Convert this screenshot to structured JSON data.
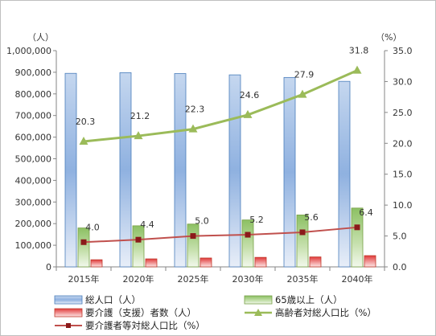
{
  "chart_data": {
    "type": "bar",
    "categories": [
      "2015年",
      "2020年",
      "2025年",
      "2030年",
      "2035年",
      "2040年"
    ],
    "left_axis": {
      "unit": "（人）",
      "ylim": [
        0,
        1000000
      ],
      "ticks": [
        "0",
        "100,000",
        "200,000",
        "300,000",
        "400,000",
        "500,000",
        "600,000",
        "700,000",
        "800,000",
        "900,000",
        "1,000,000"
      ]
    },
    "right_axis": {
      "unit": "（%）",
      "ylim": [
        0,
        35
      ],
      "ticks": [
        "0.0",
        "5.0",
        "10.0",
        "15.0",
        "20.0",
        "25.0",
        "30.0",
        "35.0"
      ]
    },
    "series": [
      {
        "name": "総人口（人）",
        "type": "bar",
        "axis": "left",
        "color": "#4a7ebb",
        "values": [
          895000,
          898000,
          894000,
          888000,
          876000,
          858000
        ]
      },
      {
        "name": "65歳以上（人）",
        "type": "bar",
        "axis": "left",
        "color": "#77a047",
        "values": [
          180000,
          190000,
          198000,
          217000,
          240000,
          272000
        ]
      },
      {
        "name": "要介護（支援）者数（人）",
        "type": "bar",
        "axis": "left",
        "color": "#c0392b",
        "values": [
          33000,
          37000,
          41000,
          44000,
          46000,
          52000
        ]
      },
      {
        "name": "高齢者対総人口比（%）",
        "type": "line",
        "axis": "right",
        "color": "#9bbb59",
        "values": [
          20.3,
          21.2,
          22.3,
          24.6,
          27.9,
          31.8
        ],
        "labels": [
          "20.3",
          "21.2",
          "22.3",
          "24.6",
          "27.9",
          "31.8"
        ]
      },
      {
        "name": "要介護者等対総人口比（%）",
        "type": "line",
        "axis": "right",
        "color": "#c0504d",
        "values": [
          4.0,
          4.4,
          5.0,
          5.2,
          5.6,
          6.4
        ],
        "labels": [
          "4.0",
          "4.4",
          "5.0",
          "5.2",
          "5.6",
          "6.4"
        ]
      }
    ],
    "grid": false,
    "legend_position": "bottom"
  }
}
